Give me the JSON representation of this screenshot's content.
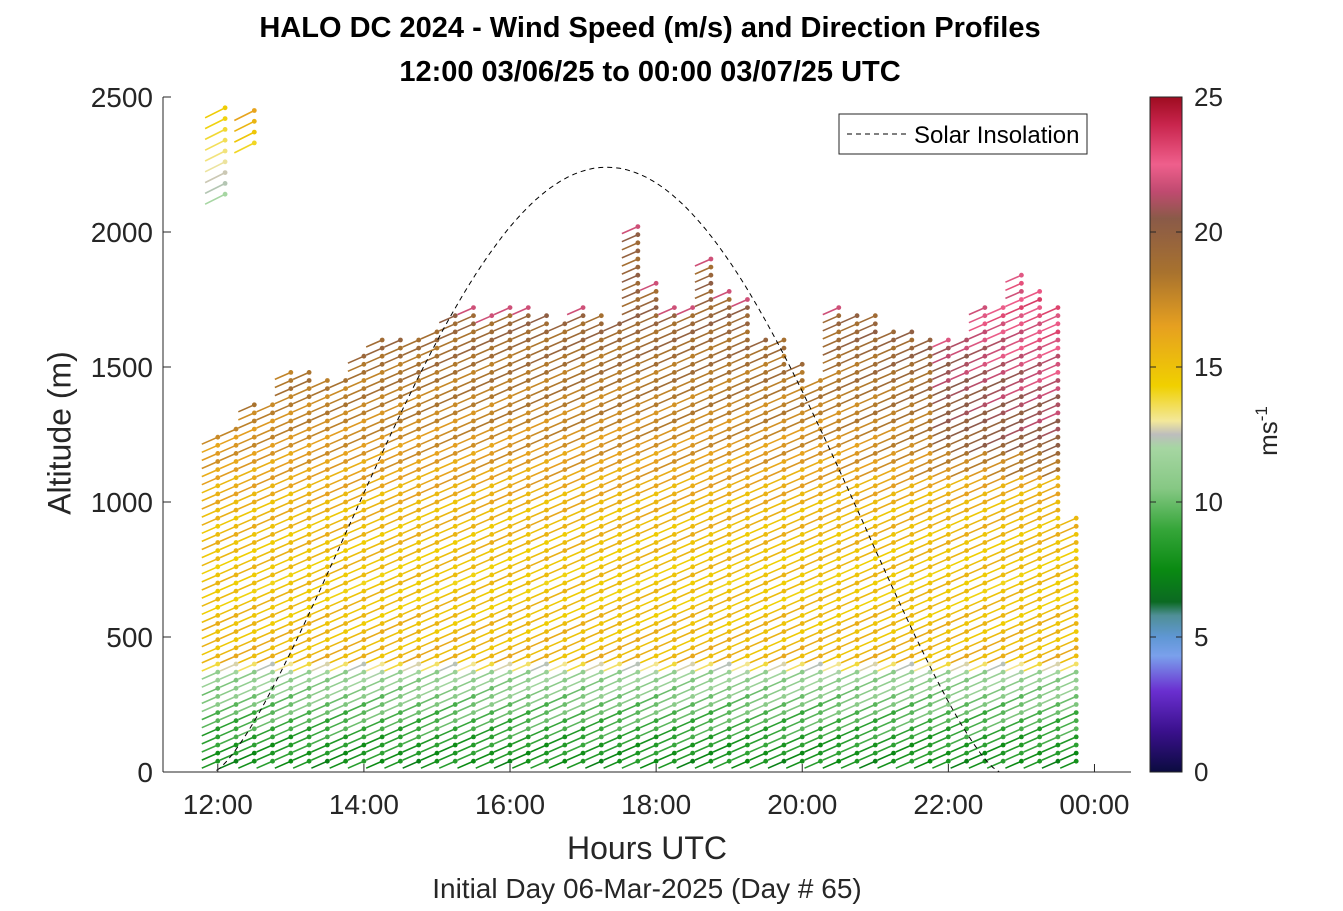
{
  "chart_data": {
    "type": "scatter",
    "title": "HALO DC 2024 - Wind Speed (m/s) and Direction Profiles",
    "subtitle": "12:00 03/06/25 to 00:00 03/07/25  UTC",
    "xlabel": "Hours UTC",
    "ylabel": "Altitude (m)",
    "footer": "Initial Day 06-Mar-2025 (Day # 65)",
    "xlim": [
      11.25,
      24.5
    ],
    "ylim": [
      0,
      2500
    ],
    "x_ticks": [
      12,
      14,
      16,
      18,
      20,
      22,
      24
    ],
    "x_tick_labels": [
      "12:00",
      "14:00",
      "16:00",
      "18:00",
      "20:00",
      "22:00",
      "00:00"
    ],
    "y_ticks": [
      0,
      500,
      1000,
      1500,
      2000,
      2500
    ],
    "y_tick_labels": [
      "0",
      "500",
      "1000",
      "1500",
      "2000",
      "2500"
    ],
    "legend": {
      "label": "Solar Insolation",
      "location": "top-right"
    },
    "colorbar": {
      "label": "ms",
      "label_superscript": "-1",
      "range": [
        0,
        25
      ],
      "ticks": [
        0,
        5,
        10,
        15,
        20,
        25
      ],
      "tick_labels": [
        "0",
        "5",
        "10",
        "15",
        "20",
        "25"
      ],
      "stops": [
        {
          "v": 0,
          "c": "#0b0b40"
        },
        {
          "v": 1.5,
          "c": "#3a108c"
        },
        {
          "v": 3.0,
          "c": "#6a2fd0"
        },
        {
          "v": 4.3,
          "c": "#7aa0ec"
        },
        {
          "v": 5.0,
          "c": "#5f97d4"
        },
        {
          "v": 5.8,
          "c": "#4f8f96"
        },
        {
          "v": 6.3,
          "c": "#0b6a22"
        },
        {
          "v": 7.5,
          "c": "#0a8a12"
        },
        {
          "v": 9.0,
          "c": "#36a63a"
        },
        {
          "v": 10.5,
          "c": "#86c884"
        },
        {
          "v": 12.0,
          "c": "#a6d6a2"
        },
        {
          "v": 12.5,
          "c": "#bdbdbd"
        },
        {
          "v": 13.0,
          "c": "#f3e89a"
        },
        {
          "v": 14.3,
          "c": "#f0d000"
        },
        {
          "v": 16.5,
          "c": "#e6a020"
        },
        {
          "v": 18.5,
          "c": "#a8722e"
        },
        {
          "v": 20.5,
          "c": "#8a5a48"
        },
        {
          "v": 21.5,
          "c": "#c04a70"
        },
        {
          "v": 22.5,
          "c": "#ef5f8c"
        },
        {
          "v": 24.0,
          "c": "#c8244c"
        },
        {
          "v": 25.0,
          "c": "#9e0c20"
        }
      ]
    },
    "profile_times": [
      12,
      12.25,
      12.5,
      12.75,
      13,
      13.25,
      13.5,
      13.75,
      14,
      14.25,
      14.5,
      14.75,
      15,
      15.25,
      15.5,
      15.75,
      16,
      16.25,
      16.5,
      16.75,
      17,
      17.25,
      17.5,
      17.75,
      18,
      18.25,
      18.5,
      18.75,
      19,
      19.25,
      19.5,
      19.75,
      20,
      20.25,
      20.5,
      20.75,
      21,
      21.25,
      21.5,
      21.75,
      22,
      22.25,
      22.5,
      22.75,
      23,
      23.25,
      23.5,
      23.75
    ],
    "profile_tops_m": [
      1260,
      1290,
      1360,
      1360,
      1490,
      1500,
      1470,
      1460,
      1560,
      1610,
      1610,
      1600,
      1650,
      1700,
      1720,
      1710,
      1720,
      1720,
      1690,
      1660,
      1720,
      1690,
      1680,
      2040,
      1830,
      1730,
      1730,
      1910,
      1780,
      1770,
      1620,
      1620,
      1530,
      1460,
      1730,
      1700,
      1690,
      1650,
      1630,
      1620,
      1620,
      1610,
      1730,
      1730,
      1840,
      1780,
      1730,
      950
    ],
    "profile_vertical_spacing_m": 30,
    "speed_by_altitude_ms": [
      {
        "alt": 0,
        "speed": 7.5
      },
      {
        "alt": 120,
        "speed": 8.5
      },
      {
        "alt": 250,
        "speed": 10.0
      },
      {
        "alt": 380,
        "speed": 11.5
      },
      {
        "alt": 430,
        "speed": 15.5
      },
      {
        "alt": 700,
        "speed": 14.8
      },
      {
        "alt": 1000,
        "speed": 15.5
      },
      {
        "alt": 1300,
        "speed": 17.5
      },
      {
        "alt": 1700,
        "speed": 19.5
      }
    ],
    "upper_profiles": [
      {
        "time": 12.1,
        "alt_min": 2140,
        "alt_max": 2460,
        "speed": 12.0
      },
      {
        "time": 12.5,
        "alt_min": 2330,
        "alt_max": 2460,
        "speed": 14.0
      }
    ],
    "wind_direction_deg_typical": 250,
    "insolation": {
      "sunrise_hour": 11.95,
      "sunset_hour": 22.7,
      "peak_hour": 17.35,
      "peak_alt_equivalent_m": 2240
    }
  }
}
